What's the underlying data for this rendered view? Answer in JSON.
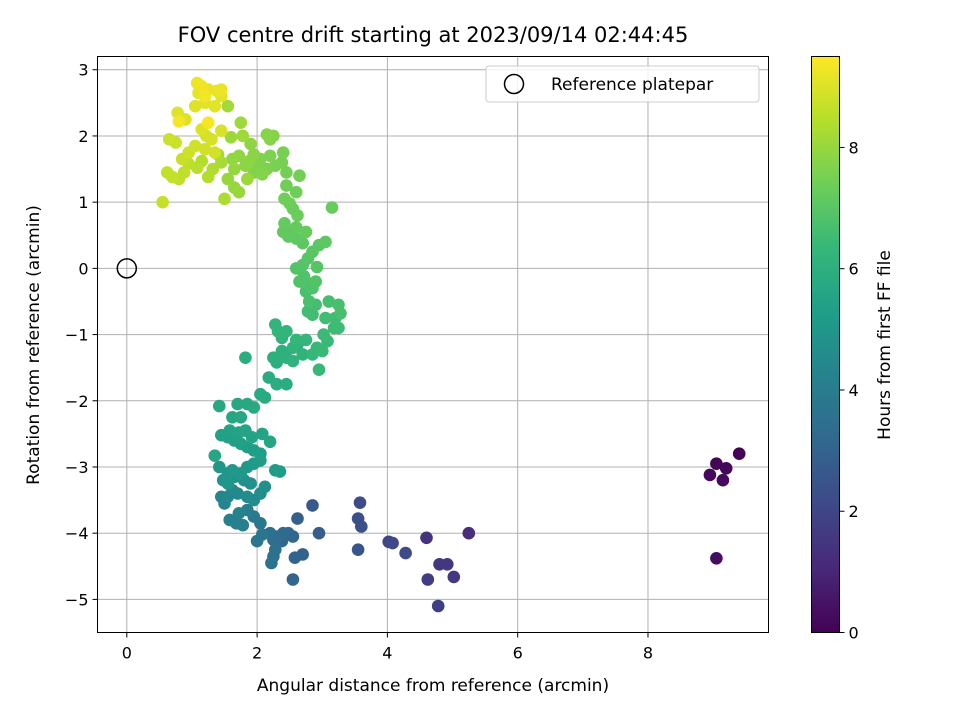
{
  "chart_data": {
    "type": "scatter",
    "title": "FOV centre drift starting at 2023/09/14 02:44:45",
    "xlabel": "Angular distance from reference (arcmin)",
    "ylabel": "Rotation from reference (arcmin)",
    "xlim": [
      -0.45,
      9.85
    ],
    "ylim": [
      -5.5,
      3.2
    ],
    "xticks": [
      0,
      2,
      4,
      6,
      8
    ],
    "yticks": [
      -5,
      -4,
      -3,
      -2,
      -1,
      0,
      1,
      2,
      3
    ],
    "grid": true,
    "legend": {
      "placement": "top-right",
      "entries": [
        "Reference platepar"
      ]
    },
    "reference_point": {
      "x": 0,
      "y": 0
    },
    "colorbar": {
      "label": "Hours from first FF file",
      "colormap": "viridis",
      "range": [
        0,
        9.5
      ],
      "ticks": [
        0,
        2,
        4,
        6,
        8
      ]
    },
    "colormap_colors": [
      "#440154",
      "#482878",
      "#3e4989",
      "#31688e",
      "#26828e",
      "#1f9e89",
      "#35b779",
      "#6ece58",
      "#b5de2b",
      "#fde725"
    ],
    "points_format": [
      "x",
      "y",
      "hours"
    ],
    "points": [
      [
        9.4,
        -2.8,
        0.05
      ],
      [
        9.05,
        -2.95,
        0.1
      ],
      [
        9.2,
        -3.02,
        0.15
      ],
      [
        8.95,
        -3.12,
        0.2
      ],
      [
        9.15,
        -3.2,
        0.25
      ],
      [
        9.05,
        -4.38,
        0.35
      ],
      [
        5.25,
        -4.0,
        1.2
      ],
      [
        4.6,
        -4.07,
        1.4
      ],
      [
        4.8,
        -4.47,
        1.5
      ],
      [
        4.92,
        -4.47,
        1.55
      ],
      [
        5.02,
        -4.66,
        1.6
      ],
      [
        4.62,
        -4.7,
        1.7
      ],
      [
        4.78,
        -5.1,
        1.8
      ],
      [
        4.02,
        -4.13,
        2.0
      ],
      [
        4.08,
        -4.15,
        2.1
      ],
      [
        4.28,
        -4.3,
        2.15
      ],
      [
        3.58,
        -3.54,
        2.25
      ],
      [
        3.55,
        -3.78,
        2.35
      ],
      [
        3.6,
        -3.9,
        2.4
      ],
      [
        3.55,
        -4.25,
        2.5
      ],
      [
        2.85,
        -3.58,
        2.7
      ],
      [
        2.95,
        -4.0,
        2.8
      ],
      [
        2.62,
        -3.78,
        2.9
      ],
      [
        2.7,
        -4.32,
        3.0
      ],
      [
        2.58,
        -4.37,
        3.05
      ],
      [
        2.55,
        -4.7,
        3.1
      ],
      [
        2.55,
        -4.05,
        3.15
      ],
      [
        2.48,
        -4.0,
        3.2
      ],
      [
        2.4,
        -4.0,
        3.25
      ],
      [
        2.38,
        -4.12,
        3.3
      ],
      [
        2.3,
        -4.05,
        3.35
      ],
      [
        2.25,
        -4.1,
        3.4
      ],
      [
        2.2,
        -4.0,
        3.45
      ],
      [
        2.28,
        -4.25,
        3.5
      ],
      [
        2.25,
        -4.35,
        3.55
      ],
      [
        2.22,
        -4.45,
        3.6
      ],
      [
        2.0,
        -4.12,
        3.7
      ],
      [
        2.08,
        -4.02,
        3.75
      ],
      [
        2.05,
        -3.85,
        3.8
      ],
      [
        1.95,
        -3.75,
        3.9
      ],
      [
        1.85,
        -3.65,
        4.0
      ],
      [
        1.78,
        -3.88,
        4.1
      ],
      [
        1.68,
        -3.85,
        4.15
      ],
      [
        1.58,
        -3.8,
        4.2
      ],
      [
        1.72,
        -3.7,
        4.25
      ],
      [
        1.5,
        -3.55,
        4.3
      ],
      [
        1.45,
        -3.45,
        4.35
      ],
      [
        1.55,
        -3.45,
        4.4
      ],
      [
        1.62,
        -3.35,
        4.45
      ],
      [
        1.7,
        -3.4,
        4.5
      ],
      [
        1.85,
        -3.45,
        4.55
      ],
      [
        1.95,
        -3.5,
        4.6
      ],
      [
        2.05,
        -3.4,
        4.65
      ],
      [
        2.12,
        -3.3,
        4.7
      ],
      [
        1.9,
        -3.25,
        4.75
      ],
      [
        1.8,
        -3.2,
        4.8
      ],
      [
        1.65,
        -3.15,
        4.85
      ],
      [
        1.55,
        -3.1,
        4.9
      ],
      [
        1.48,
        -3.2,
        4.95
      ],
      [
        1.42,
        -3.0,
        5.0
      ],
      [
        1.55,
        -3.25,
        5.02
      ],
      [
        1.62,
        -3.05,
        5.05
      ],
      [
        1.75,
        -3.1,
        5.08
      ],
      [
        1.85,
        -3.0,
        5.1
      ],
      [
        1.95,
        -2.95,
        5.15
      ],
      [
        2.05,
        -2.9,
        5.2
      ],
      [
        2.28,
        -3.05,
        5.22
      ],
      [
        2.35,
        -3.07,
        5.25
      ],
      [
        1.95,
        -2.75,
        5.28
      ],
      [
        2.05,
        -2.8,
        5.3
      ],
      [
        1.85,
        -2.7,
        5.33
      ],
      [
        1.75,
        -2.65,
        5.35
      ],
      [
        1.65,
        -2.6,
        5.38
      ],
      [
        1.55,
        -2.55,
        5.4
      ],
      [
        1.45,
        -2.52,
        5.42
      ],
      [
        1.58,
        -2.45,
        5.45
      ],
      [
        1.72,
        -2.48,
        5.48
      ],
      [
        1.82,
        -2.45,
        5.5
      ],
      [
        1.92,
        -2.55,
        5.52
      ],
      [
        2.08,
        -2.5,
        5.55
      ],
      [
        2.2,
        -2.62,
        5.58
      ],
      [
        1.35,
        -2.83,
        5.6
      ],
      [
        1.62,
        -2.25,
        5.62
      ],
      [
        1.75,
        -2.25,
        5.65
      ],
      [
        1.7,
        -2.05,
        5.68
      ],
      [
        1.85,
        -2.05,
        5.7
      ],
      [
        1.42,
        -2.08,
        5.72
      ],
      [
        1.95,
        -2.1,
        5.75
      ],
      [
        2.05,
        -1.9,
        5.78
      ],
      [
        2.12,
        -1.95,
        5.8
      ],
      [
        2.18,
        -1.65,
        5.85
      ],
      [
        2.3,
        -1.75,
        5.88
      ],
      [
        1.82,
        -1.35,
        5.9
      ],
      [
        2.45,
        -1.75,
        5.92
      ],
      [
        2.3,
        -1.42,
        5.95
      ],
      [
        2.25,
        -1.35,
        5.98
      ],
      [
        2.38,
        -1.25,
        6.0
      ],
      [
        2.45,
        -1.35,
        6.05
      ],
      [
        2.55,
        -1.4,
        6.08
      ],
      [
        2.62,
        -1.15,
        6.1
      ],
      [
        2.7,
        -1.3,
        6.12
      ],
      [
        2.55,
        -1.2,
        6.15
      ],
      [
        2.38,
        -1.05,
        6.18
      ],
      [
        2.45,
        -0.95,
        6.2
      ],
      [
        2.28,
        -0.85,
        6.22
      ],
      [
        2.32,
        -0.95,
        6.25
      ],
      [
        2.6,
        -1.08,
        6.28
      ],
      [
        2.75,
        -1.08,
        6.3
      ],
      [
        2.85,
        -1.3,
        6.32
      ],
      [
        2.92,
        -1.2,
        6.35
      ],
      [
        2.95,
        -1.53,
        6.38
      ],
      [
        3.0,
        -1.25,
        6.4
      ],
      [
        3.08,
        -1.1,
        6.42
      ],
      [
        3.02,
        -1.0,
        6.45
      ],
      [
        3.18,
        -0.9,
        6.48
      ],
      [
        3.25,
        -0.9,
        6.5
      ],
      [
        3.2,
        -0.75,
        6.52
      ],
      [
        3.05,
        -0.75,
        6.55
      ],
      [
        2.85,
        -0.7,
        6.58
      ],
      [
        2.78,
        -0.65,
        6.6
      ],
      [
        2.9,
        -0.55,
        6.62
      ],
      [
        3.1,
        -0.5,
        6.65
      ],
      [
        3.25,
        -0.55,
        6.68
      ],
      [
        3.28,
        -0.68,
        6.7
      ],
      [
        2.8,
        -0.5,
        6.72
      ],
      [
        2.75,
        -0.35,
        6.75
      ],
      [
        2.85,
        -0.3,
        6.78
      ],
      [
        2.78,
        -0.22,
        6.8
      ],
      [
        2.72,
        -0.12,
        6.82
      ],
      [
        2.65,
        -0.2,
        6.85
      ],
      [
        2.9,
        -0.2,
        6.88
      ],
      [
        2.6,
        0.0,
        6.9
      ],
      [
        2.7,
        0.05,
        6.92
      ],
      [
        2.92,
        0.02,
        6.95
      ],
      [
        2.78,
        0.15,
        6.98
      ],
      [
        2.85,
        0.25,
        7.0
      ],
      [
        2.95,
        0.35,
        7.02
      ],
      [
        3.05,
        0.4,
        7.05
      ],
      [
        2.7,
        0.38,
        7.08
      ],
      [
        2.6,
        0.45,
        7.1
      ],
      [
        2.55,
        0.55,
        7.12
      ],
      [
        2.48,
        0.48,
        7.15
      ],
      [
        2.4,
        0.55,
        7.18
      ],
      [
        2.42,
        0.68,
        7.2
      ],
      [
        2.6,
        0.62,
        7.22
      ],
      [
        2.75,
        0.55,
        7.25
      ],
      [
        3.15,
        0.92,
        7.28
      ],
      [
        2.62,
        0.8,
        7.3
      ],
      [
        2.55,
        0.9,
        7.32
      ],
      [
        2.5,
        0.98,
        7.35
      ],
      [
        2.42,
        1.05,
        7.38
      ],
      [
        2.6,
        1.15,
        7.4
      ],
      [
        2.45,
        1.25,
        7.42
      ],
      [
        2.65,
        1.4,
        7.45
      ],
      [
        2.45,
        1.45,
        7.48
      ],
      [
        2.38,
        1.6,
        7.5
      ],
      [
        2.4,
        1.75,
        7.52
      ],
      [
        2.28,
        1.55,
        7.55
      ],
      [
        2.2,
        1.7,
        7.58
      ],
      [
        2.15,
        1.5,
        7.6
      ],
      [
        2.05,
        1.65,
        7.62
      ],
      [
        2.0,
        1.55,
        7.65
      ],
      [
        1.95,
        1.45,
        7.68
      ],
      [
        2.08,
        1.42,
        7.7
      ],
      [
        2.2,
        1.95,
        7.72
      ],
      [
        2.25,
        2.0,
        7.75
      ],
      [
        2.15,
        2.02,
        7.78
      ],
      [
        1.95,
        1.72,
        7.8
      ],
      [
        1.88,
        1.62,
        7.82
      ],
      [
        1.82,
        1.55,
        7.85
      ],
      [
        1.9,
        1.88,
        7.88
      ],
      [
        1.72,
        1.7,
        7.9
      ],
      [
        1.62,
        1.65,
        7.92
      ],
      [
        1.65,
        1.5,
        7.95
      ],
      [
        1.55,
        1.35,
        7.98
      ],
      [
        1.65,
        1.22,
        8.0
      ],
      [
        1.72,
        1.15,
        8.02
      ],
      [
        1.85,
        1.35,
        8.05
      ],
      [
        1.6,
        1.98,
        8.08
      ],
      [
        1.78,
        2.0,
        8.1
      ],
      [
        1.75,
        2.2,
        8.12
      ],
      [
        1.55,
        2.45,
        8.15
      ],
      [
        1.4,
        1.72,
        8.2
      ],
      [
        1.45,
        1.6,
        8.25
      ],
      [
        1.5,
        1.05,
        8.3
      ],
      [
        1.32,
        1.5,
        8.35
      ],
      [
        1.25,
        1.38,
        8.4
      ],
      [
        1.15,
        1.62,
        8.45
      ],
      [
        1.08,
        1.52,
        8.5
      ],
      [
        0.95,
        1.58,
        8.55
      ],
      [
        0.88,
        1.45,
        8.6
      ],
      [
        0.8,
        1.35,
        8.62
      ],
      [
        0.7,
        1.38,
        8.65
      ],
      [
        0.62,
        1.45,
        8.68
      ],
      [
        0.55,
        1.0,
        8.7
      ],
      [
        0.85,
        1.65,
        8.72
      ],
      [
        0.75,
        1.9,
        8.75
      ],
      [
        0.65,
        1.95,
        8.78
      ],
      [
        0.95,
        1.75,
        8.8
      ],
      [
        1.05,
        1.85,
        8.82
      ],
      [
        1.2,
        1.8,
        8.85
      ],
      [
        1.35,
        1.75,
        8.88
      ],
      [
        1.22,
        2.0,
        8.9
      ],
      [
        1.3,
        1.95,
        8.92
      ],
      [
        1.45,
        2.08,
        8.95
      ],
      [
        1.15,
        2.1,
        8.98
      ],
      [
        0.9,
        2.25,
        9.0
      ],
      [
        0.78,
        2.35,
        9.02
      ],
      [
        1.05,
        2.45,
        9.05
      ],
      [
        1.2,
        2.5,
        9.08
      ],
      [
        1.35,
        2.45,
        9.1
      ],
      [
        1.45,
        2.6,
        9.12
      ],
      [
        1.1,
        2.65,
        9.15
      ],
      [
        1.25,
        2.7,
        9.18
      ],
      [
        1.38,
        2.68,
        9.2
      ],
      [
        1.45,
        2.7,
        9.22
      ],
      [
        1.08,
        2.8,
        9.25
      ],
      [
        1.15,
        2.75,
        9.3
      ],
      [
        1.2,
        2.6,
        9.35
      ],
      [
        0.8,
        2.22,
        9.38
      ],
      [
        1.25,
        2.2,
        9.4
      ]
    ]
  }
}
